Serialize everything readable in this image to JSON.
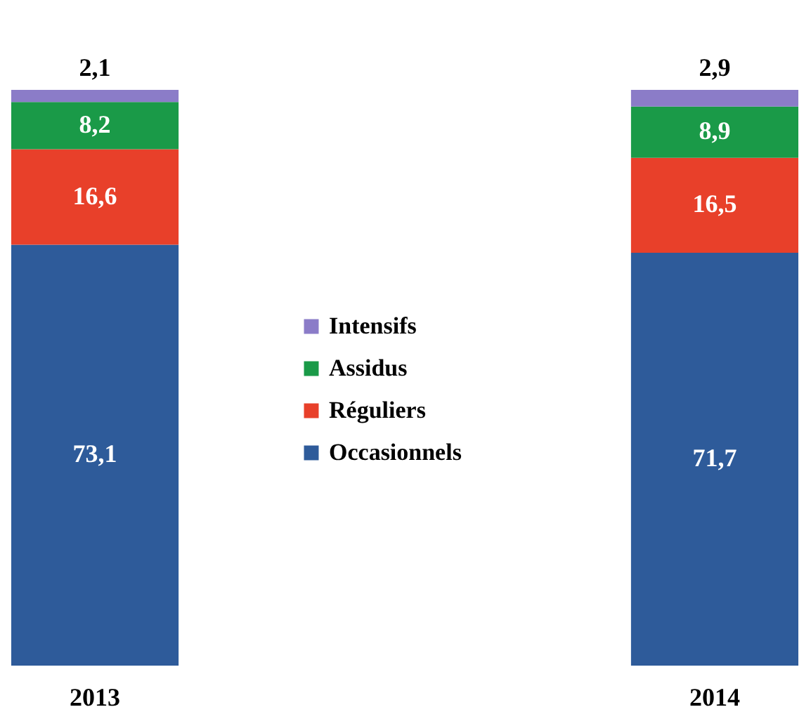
{
  "chart_data": {
    "type": "bar",
    "stacked": true,
    "categories": [
      "2013",
      "2014"
    ],
    "legend": "center",
    "series": [
      {
        "name": "Occasionnels",
        "color": "#2e5b9a",
        "values": [
          73.1,
          71.7
        ],
        "value_labels": [
          "73,1",
          "71,7"
        ]
      },
      {
        "name": "Réguliers",
        "color": "#e8402a",
        "values": [
          16.6,
          16.5
        ],
        "value_labels": [
          "16,6",
          "16,5"
        ]
      },
      {
        "name": "Assidus",
        "color": "#1a9a48",
        "values": [
          8.2,
          8.9
        ],
        "value_labels": [
          "8,2",
          "8,9"
        ]
      },
      {
        "name": "Intensifs",
        "color": "#8b7cc8",
        "values": [
          2.1,
          2.9
        ],
        "value_labels": [
          "2,1",
          "2,9"
        ]
      }
    ]
  }
}
